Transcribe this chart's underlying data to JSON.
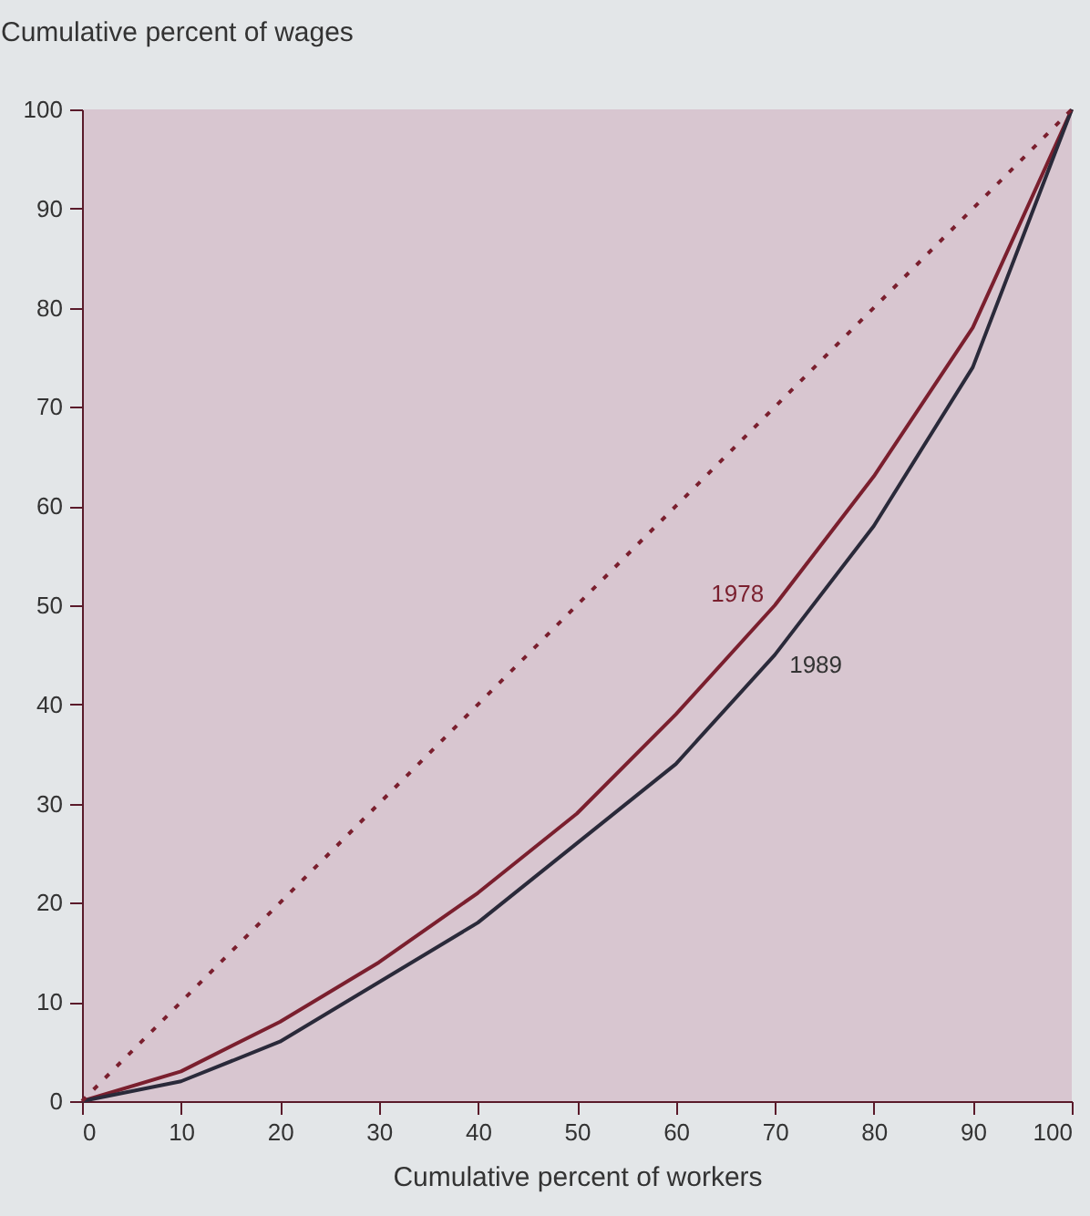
{
  "chart_data": {
    "type": "line",
    "xlabel": "Cumulative percent of workers",
    "ylabel": "Cumulative percent of wages",
    "x": [
      0,
      10,
      20,
      30,
      40,
      50,
      60,
      70,
      80,
      90,
      100
    ],
    "series": [
      {
        "name": "1978",
        "color": "#7a1f2e",
        "line_style": "solid",
        "values": [
          0,
          3,
          8,
          14,
          21,
          29,
          39,
          50,
          63,
          78,
          100
        ]
      },
      {
        "name": "1989",
        "color": "#2a2a3a",
        "line_style": "solid",
        "values": [
          0,
          2,
          6,
          12,
          18,
          26,
          34,
          45,
          58,
          74,
          100
        ]
      },
      {
        "color": "#7a1f2e",
        "line_style": "dotted",
        "values": [
          0,
          10,
          20,
          30,
          40,
          50,
          60,
          70,
          80,
          90,
          100
        ]
      }
    ],
    "xlim": [
      0,
      100
    ],
    "xticks": [
      0,
      10,
      20,
      30,
      40,
      50,
      60,
      70,
      80,
      90,
      100
    ],
    "ylim": [
      0,
      100
    ],
    "yticks": [
      0,
      10,
      20,
      30,
      40,
      50,
      60,
      70,
      80,
      90,
      100
    ],
    "grid": false,
    "marker": "none"
  }
}
